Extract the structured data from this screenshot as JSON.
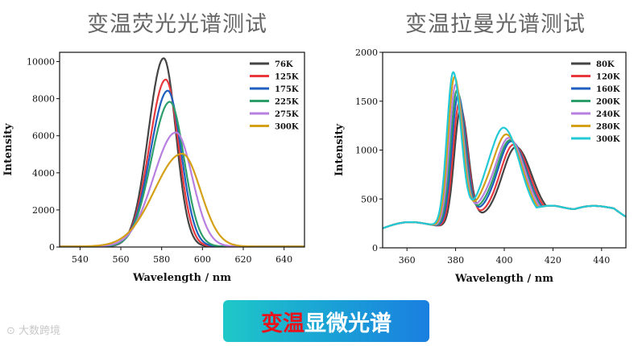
{
  "left_heading": "变温荧光光谱测试",
  "right_heading": "变温拉曼光谱测试",
  "banner": {
    "part1": "变温",
    "part2": "显微光谱"
  },
  "watermark": "大数跨境",
  "chart_data": [
    {
      "type": "line",
      "title": "",
      "xlabel": "Wavelength / nm",
      "ylabel": "Intensity",
      "xlim": [
        530,
        650
      ],
      "ylim": [
        0,
        10500
      ],
      "xticks": [
        540,
        560,
        580,
        600,
        620,
        640
      ],
      "yticks": [
        0,
        2000,
        4000,
        6000,
        8000,
        10000
      ],
      "legend_position": "top-right",
      "series": [
        {
          "name": "76K",
          "color": "#444444",
          "peak_x": 581,
          "peak_y": 10150,
          "width_left": 7.5,
          "width_right": 6.0
        },
        {
          "name": "125K",
          "color": "#e8383d",
          "peak_x": 582,
          "peak_y": 9000,
          "width_left": 8.0,
          "width_right": 6.3
        },
        {
          "name": "175K",
          "color": "#1f5fbf",
          "peak_x": 583,
          "peak_y": 8400,
          "width_left": 8.5,
          "width_right": 6.6
        },
        {
          "name": "225K",
          "color": "#2e9f6b",
          "peak_x": 584,
          "peak_y": 7800,
          "width_left": 9.0,
          "width_right": 7.0
        },
        {
          "name": "275K",
          "color": "#b77fe0",
          "peak_x": 587,
          "peak_y": 6150,
          "width_left": 11.0,
          "width_right": 8.0
        },
        {
          "name": "300K",
          "color": "#d4a017",
          "peak_x": 590,
          "peak_y": 5000,
          "width_left": 13.5,
          "width_right": 9.0
        }
      ]
    },
    {
      "type": "line",
      "title": "",
      "xlabel": "Wavelength / nm",
      "ylabel": "Intensity",
      "xlim": [
        350,
        450
      ],
      "ylim": [
        0,
        2000
      ],
      "xticks": [
        360,
        380,
        400,
        420,
        440
      ],
      "yticks": [
        0,
        500,
        1000,
        1500,
        2000
      ],
      "legend_position": "top-right",
      "series": [
        {
          "name": "80K",
          "color": "#444444",
          "peak1_x": 382,
          "peak1_y": 1400,
          "peak2_x": 405,
          "peak2_y": 1120,
          "valley_y": 400
        },
        {
          "name": "120K",
          "color": "#e8383d",
          "peak1_x": 381.5,
          "peak1_y": 1470,
          "peak2_x": 404,
          "peak2_y": 1140,
          "valley_y": 430
        },
        {
          "name": "160K",
          "color": "#1f5fbf",
          "peak1_x": 381,
          "peak1_y": 1550,
          "peak2_x": 403,
          "peak2_y": 1170,
          "valley_y": 480
        },
        {
          "name": "200K",
          "color": "#2e9f6b",
          "peak1_x": 380.5,
          "peak1_y": 1600,
          "peak2_x": 402.5,
          "peak2_y": 1180,
          "valley_y": 520
        },
        {
          "name": "240K",
          "color": "#b77fe0",
          "peak1_x": 380,
          "peak1_y": 1660,
          "peak2_x": 402,
          "peak2_y": 1200,
          "valley_y": 570
        },
        {
          "name": "280K",
          "color": "#d4a017",
          "peak1_x": 379.5,
          "peak1_y": 1740,
          "peak2_x": 401,
          "peak2_y": 1230,
          "valley_y": 620
        },
        {
          "name": "300K",
          "color": "#22c9d6",
          "peak1_x": 379,
          "peak1_y": 1790,
          "peak2_x": 400,
          "peak2_y": 1290,
          "valley_y": 660
        }
      ]
    }
  ]
}
